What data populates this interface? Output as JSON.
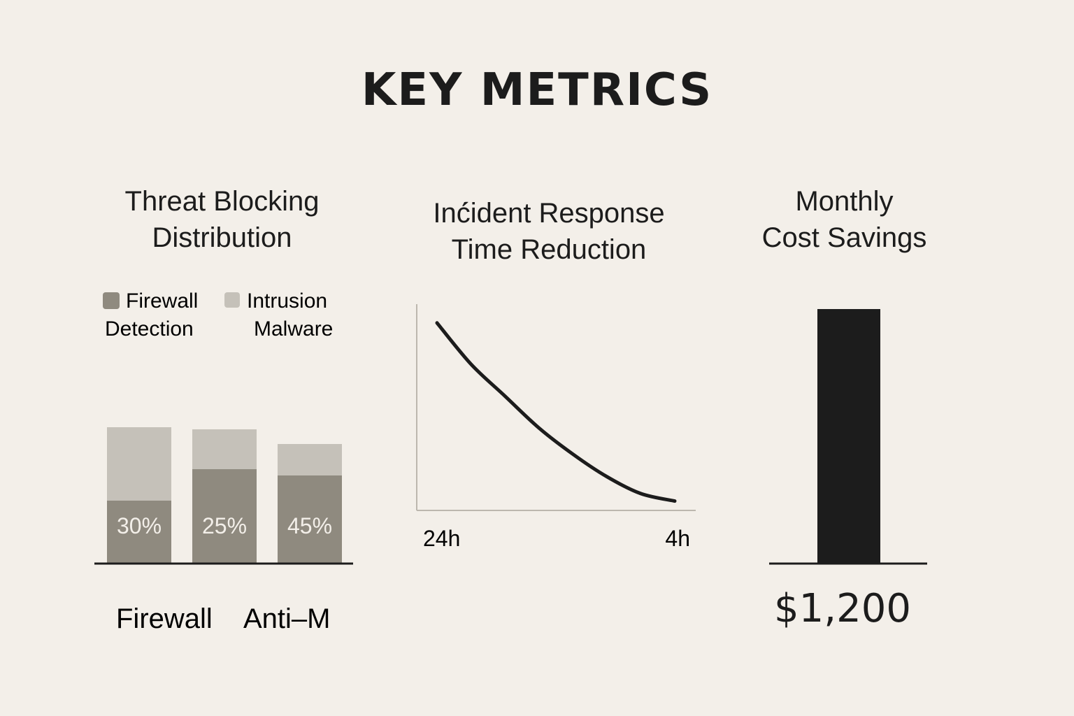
{
  "title": "KEY METRICS",
  "chart_data": [
    {
      "type": "bar",
      "title_lines": [
        "Threat Blocking",
        "Distribution"
      ],
      "legend_lines": [
        [
          "Firewall",
          "Intrusion"
        ],
        [
          "Detection",
          "Malware"
        ]
      ],
      "stacked": true,
      "series": [
        {
          "values": [
            30,
            45,
            42
          ],
          "color": "#8f8a7f"
        },
        {
          "values": [
            35,
            19,
            15
          ],
          "color": "#c5c1b9"
        }
      ],
      "data_labels": [
        "30%",
        "25%",
        "45%"
      ],
      "label_color": "#f3efe9",
      "category_labels_shown": [
        "Firewall",
        "Anti–M"
      ]
    },
    {
      "type": "line",
      "title_lines": [
        "Inć́ident Response",
        "Time Reduction"
      ],
      "x_tick_labels": [
        "24h",
        "4h"
      ],
      "y": [
        100,
        78,
        61,
        44,
        30,
        18,
        9,
        5
      ],
      "ylim": [
        0,
        110
      ],
      "line_color": "#1c1c1c"
    },
    {
      "type": "bar",
      "title_lines": [
        "Monthly",
        "Cost Savings"
      ],
      "value_label": "$1,200",
      "values": [
        1200
      ],
      "color": "#1c1c1c"
    }
  ]
}
